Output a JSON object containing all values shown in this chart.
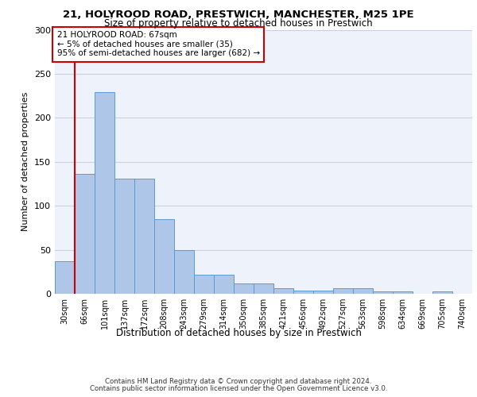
{
  "title1": "21, HOLYROOD ROAD, PRESTWICH, MANCHESTER, M25 1PE",
  "title2": "Size of property relative to detached houses in Prestwich",
  "xlabel": "Distribution of detached houses by size in Prestwich",
  "ylabel": "Number of detached properties",
  "annotation_line1": "21 HOLYROOD ROAD: 67sqm",
  "annotation_line2": "← 5% of detached houses are smaller (35)",
  "annotation_line3": "95% of semi-detached houses are larger (682) →",
  "bin_labels": [
    "30sqm",
    "66sqm",
    "101sqm",
    "137sqm",
    "172sqm",
    "208sqm",
    "243sqm",
    "279sqm",
    "314sqm",
    "350sqm",
    "385sqm",
    "421sqm",
    "456sqm",
    "492sqm",
    "527sqm",
    "563sqm",
    "598sqm",
    "634sqm",
    "669sqm",
    "705sqm",
    "740sqm"
  ],
  "bar_values": [
    37,
    136,
    229,
    131,
    131,
    85,
    50,
    22,
    22,
    12,
    12,
    6,
    4,
    4,
    6,
    6,
    3,
    3,
    0,
    3,
    0
  ],
  "bar_color": "#aec6e8",
  "bar_edge_color": "#5a9ad4",
  "red_line_x": 1,
  "annotation_box_color": "#cc0000",
  "ylim": [
    0,
    300
  ],
  "yticks": [
    0,
    50,
    100,
    150,
    200,
    250,
    300
  ],
  "grid_color": "#c8d0e0",
  "background_color": "#eef2fb",
  "footer1": "Contains HM Land Registry data © Crown copyright and database right 2024.",
  "footer2": "Contains public sector information licensed under the Open Government Licence v3.0."
}
